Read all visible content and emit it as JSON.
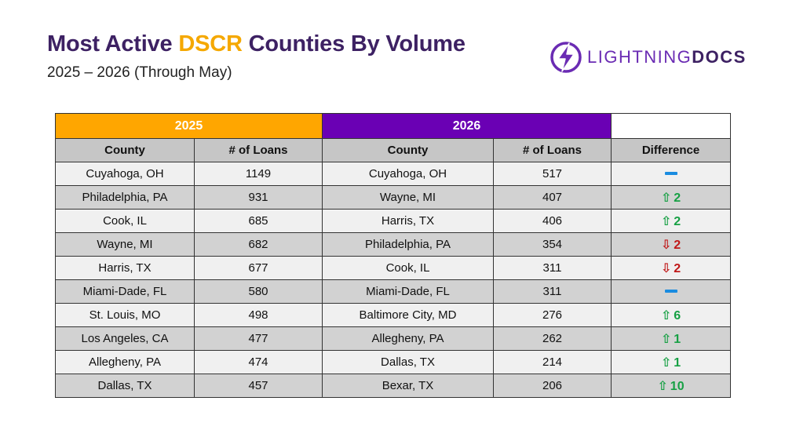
{
  "header": {
    "title_prefix": "Most Active ",
    "title_accent": "DSCR",
    "title_suffix": " Counties By Volume",
    "subtitle": "2025 – 2026 (Through May)"
  },
  "logo": {
    "text_light": "LIGHTNING",
    "text_bold": "DOCS"
  },
  "table": {
    "year_2025": "2025",
    "year_2026": "2026",
    "headers": {
      "county_2025": "County",
      "loans_2025": "# of Loans",
      "county_2026": "County",
      "loans_2026": "# of Loans",
      "difference": "Difference"
    },
    "rows": [
      {
        "county_2025": "Cuyahoga, OH",
        "loans_2025": "1149",
        "county_2026": "Cuyahoga, OH",
        "loans_2026": "517",
        "change": "same",
        "diff": ""
      },
      {
        "county_2025": "Philadelphia, PA",
        "loans_2025": "931",
        "county_2026": "Wayne, MI",
        "loans_2026": "407",
        "change": "up",
        "diff": "2"
      },
      {
        "county_2025": "Cook, IL",
        "loans_2025": "685",
        "county_2026": "Harris, TX",
        "loans_2026": "406",
        "change": "up",
        "diff": "2"
      },
      {
        "county_2025": "Wayne, MI",
        "loans_2025": "682",
        "county_2026": "Philadelphia, PA",
        "loans_2026": "354",
        "change": "down",
        "diff": "2"
      },
      {
        "county_2025": "Harris, TX",
        "loans_2025": "677",
        "county_2026": "Cook, IL",
        "loans_2026": "311",
        "change": "down",
        "diff": "2"
      },
      {
        "county_2025": "Miami-Dade, FL",
        "loans_2025": "580",
        "county_2026": "Miami-Dade, FL",
        "loans_2026": "311",
        "change": "same",
        "diff": ""
      },
      {
        "county_2025": "St. Louis, MO",
        "loans_2025": "498",
        "county_2026": "Baltimore City, MD",
        "loans_2026": "276",
        "change": "up",
        "diff": "6"
      },
      {
        "county_2025": "Los Angeles, CA",
        "loans_2025": "477",
        "county_2026": "Allegheny, PA",
        "loans_2026": "262",
        "change": "up",
        "diff": "1"
      },
      {
        "county_2025": "Allegheny, PA",
        "loans_2025": "474",
        "county_2026": "Dallas, TX",
        "loans_2026": "214",
        "change": "up",
        "diff": "1"
      },
      {
        "county_2025": "Dallas, TX",
        "loans_2025": "457",
        "county_2026": "Bexar, TX",
        "loans_2026": "206",
        "change": "up",
        "diff": "10"
      }
    ]
  },
  "colors": {
    "title": "#3d2163",
    "accent": "#f5a800",
    "year_2025_bg": "#ffa600",
    "year_2026_bg": "#6a00b4",
    "up": "#17a044",
    "down": "#c01818",
    "no_change": "#1a8ce0"
  },
  "icons": {
    "logo": "lightning-bolt-icon",
    "up": "up-arrow-icon",
    "down": "down-arrow-icon",
    "no_change": "dash-icon"
  }
}
